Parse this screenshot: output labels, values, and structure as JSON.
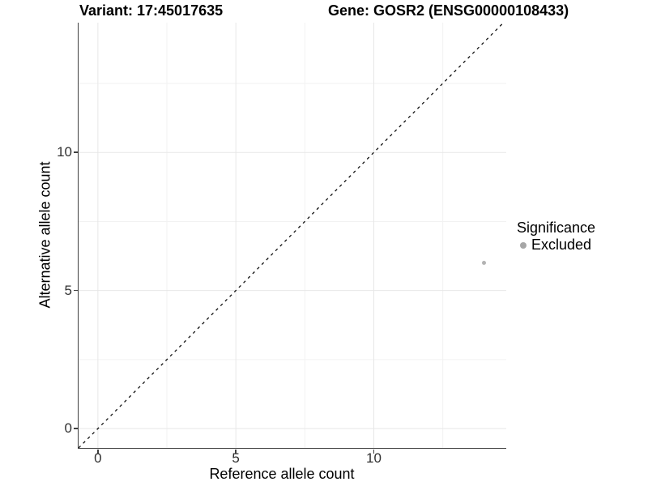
{
  "chart_data": {
    "type": "scatter",
    "titles": {
      "left": "Variant: 17:45017635",
      "right": "Gene: GOSR2 (ENSG00000108433)"
    },
    "xlabel": "Reference allele count",
    "ylabel": "Alternative allele count",
    "xlim": [
      -0.7,
      14.8
    ],
    "ylim": [
      -0.7,
      14.7
    ],
    "x_major_ticks": [
      0,
      5,
      10
    ],
    "y_major_ticks": [
      0,
      5,
      10
    ],
    "x_minor_gridlines": [
      2.5,
      7.5,
      12.5
    ],
    "y_minor_gridlines": [
      2.5,
      7.5,
      12.5
    ],
    "grid": "major+minor",
    "reference_line": {
      "equation": "y = x",
      "style": "dashed",
      "from": [
        -0.7,
        -0.7
      ],
      "to": [
        14.7,
        14.7
      ],
      "color": "#111111"
    },
    "series": [
      {
        "name": "Excluded",
        "marker": "circle",
        "color": "#b3b3b3",
        "points": [
          {
            "x": 14,
            "y": 6
          }
        ]
      }
    ],
    "legend": {
      "title": "Significance",
      "position": "right",
      "items": [
        {
          "label": "Excluded",
          "swatch_color": "#a6a6a6"
        }
      ]
    },
    "colors": {
      "background": "#ffffff",
      "axis_line": "#404040",
      "tick_label": "#303030",
      "grid_major": "#e7e7e7",
      "grid_minor": "#f2f2f2"
    }
  }
}
